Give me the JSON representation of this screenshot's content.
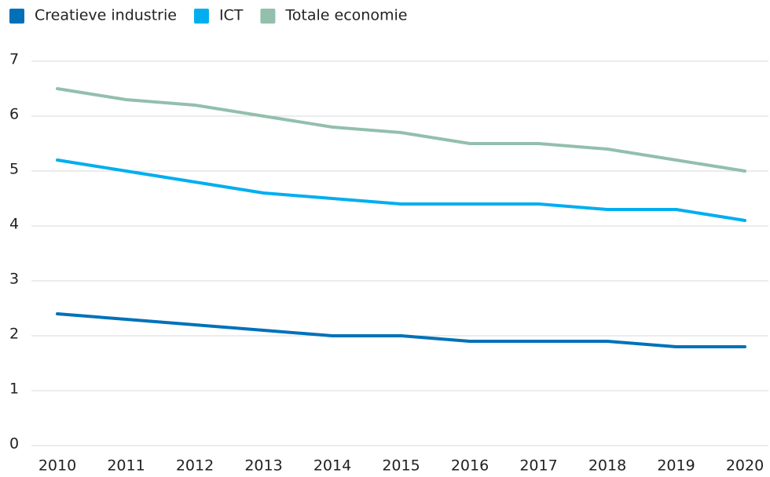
{
  "chart_data": {
    "type": "line",
    "categories": [
      "2010",
      "2011",
      "2012",
      "2013",
      "2014",
      "2015",
      "2016",
      "2017",
      "2018",
      "2019",
      "2020"
    ],
    "series": [
      {
        "name": "Creatieve industrie",
        "color": "#0071b9",
        "values": [
          2.4,
          2.3,
          2.2,
          2.1,
          2.0,
          2.0,
          1.9,
          1.9,
          1.9,
          1.8,
          1.8
        ]
      },
      {
        "name": "ICT",
        "color": "#00aeef",
        "values": [
          5.2,
          5.0,
          4.8,
          4.6,
          4.5,
          4.4,
          4.4,
          4.4,
          4.3,
          4.3,
          4.1
        ]
      },
      {
        "name": "Totale economie",
        "color": "#93bfad",
        "values": [
          6.5,
          6.3,
          6.2,
          6.0,
          5.8,
          5.7,
          5.5,
          5.5,
          5.4,
          5.2,
          5.0
        ]
      }
    ],
    "ylim": [
      0,
      7
    ],
    "yticks": [
      0,
      1,
      2,
      3,
      4,
      5,
      6,
      7
    ],
    "grid": true,
    "legend": "top"
  }
}
